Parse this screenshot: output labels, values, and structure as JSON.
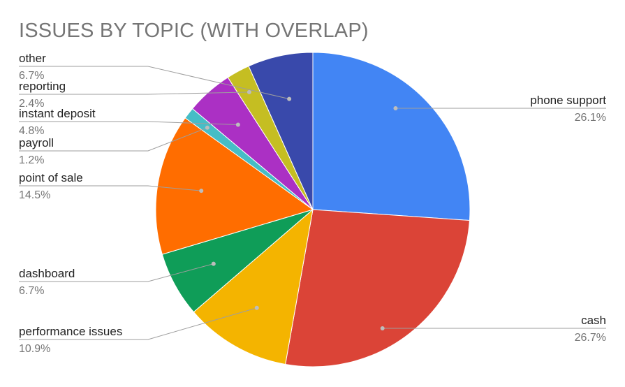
{
  "chart_data": {
    "type": "pie",
    "title": "ISSUES BY TOPIC (WITH OVERLAP)",
    "slices": [
      {
        "label": "phone support",
        "pct_text": "26.1%",
        "value": 26.1,
        "color": "#4285F4",
        "side": "right"
      },
      {
        "label": "cash",
        "pct_text": "26.7%",
        "value": 26.7,
        "color": "#DB4437",
        "side": "right"
      },
      {
        "label": "performance issues",
        "pct_text": "10.9%",
        "value": 10.9,
        "color": "#F4B400",
        "side": "left"
      },
      {
        "label": "dashboard",
        "pct_text": "6.7%",
        "value": 6.7,
        "color": "#0F9D58",
        "side": "left"
      },
      {
        "label": "point of sale",
        "pct_text": "14.5%",
        "value": 14.5,
        "color": "#FF6D00",
        "side": "left"
      },
      {
        "label": "payroll",
        "pct_text": "1.2%",
        "value": 1.2,
        "color": "#46BDC6",
        "side": "left"
      },
      {
        "label": "instant deposit",
        "pct_text": "4.8%",
        "value": 4.8,
        "color": "#AB30C4",
        "side": "left"
      },
      {
        "label": "reporting",
        "pct_text": "2.4%",
        "value": 2.4,
        "color": "#C5BE22",
        "side": "left"
      },
      {
        "label": "other",
        "pct_text": "6.7%",
        "value": 6.7,
        "color": "#3949AB",
        "side": "left"
      }
    ],
    "start_angle": "12 o'clock",
    "direction": "clockwise",
    "legend": "none (labels with leader lines)"
  }
}
